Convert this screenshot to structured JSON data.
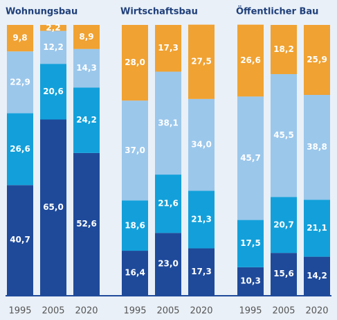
{
  "chart_data": [
    {
      "type": "bar",
      "stacked": true,
      "title": "Wohnungsbau",
      "categories": [
        "1995",
        "2005",
        "2020"
      ],
      "ylim": [
        0,
        100
      ],
      "series": [
        {
          "color": "#1f4a9a",
          "values": [
            40.7,
            65.0,
            52.6
          ],
          "value_labels": [
            "40,7",
            "65,0",
            "52,6"
          ]
        },
        {
          "color": "#13a0da",
          "values": [
            26.6,
            20.6,
            24.2
          ],
          "value_labels": [
            "26,6",
            "20,6",
            "24,2"
          ]
        },
        {
          "color": "#9bc7eb",
          "values": [
            22.9,
            12.2,
            14.3
          ],
          "value_labels": [
            "22,9",
            "12,2",
            "14,3"
          ]
        },
        {
          "color": "#f0a232",
          "values": [
            9.8,
            2.2,
            8.9
          ],
          "value_labels": [
            "9,8",
            "2,2",
            "8,9"
          ]
        }
      ]
    },
    {
      "type": "bar",
      "stacked": true,
      "title": "Wirtschaftsbau",
      "categories": [
        "1995",
        "2005",
        "2020"
      ],
      "ylim": [
        0,
        100
      ],
      "series": [
        {
          "color": "#1f4a9a",
          "values": [
            16.4,
            23.0,
            17.3
          ],
          "value_labels": [
            "16,4",
            "23,0",
            "17,3"
          ]
        },
        {
          "color": "#13a0da",
          "values": [
            18.6,
            21.6,
            21.3
          ],
          "value_labels": [
            "18,6",
            "21,6",
            "21,3"
          ]
        },
        {
          "color": "#9bc7eb",
          "values": [
            37.0,
            38.1,
            34.0
          ],
          "value_labels": [
            "37,0",
            "38,1",
            "34,0"
          ]
        },
        {
          "color": "#f0a232",
          "values": [
            28.0,
            17.3,
            27.5
          ],
          "value_labels": [
            "28,0",
            "17,3",
            "27,5"
          ]
        }
      ]
    },
    {
      "type": "bar",
      "stacked": true,
      "title": "Öffentlicher Bau",
      "categories": [
        "1995",
        "2005",
        "2020"
      ],
      "ylim": [
        0,
        100
      ],
      "series": [
        {
          "color": "#1f4a9a",
          "values": [
            10.3,
            15.6,
            14.2
          ],
          "value_labels": [
            "10,3",
            "15,6",
            "14,2"
          ]
        },
        {
          "color": "#13a0da",
          "values": [
            17.5,
            20.7,
            21.1
          ],
          "value_labels": [
            "17,5",
            "20,7",
            "21,1"
          ]
        },
        {
          "color": "#9bc7eb",
          "values": [
            45.7,
            45.5,
            38.8
          ],
          "value_labels": [
            "45,7",
            "45,5",
            "38,8"
          ]
        },
        {
          "color": "#f0a232",
          "values": [
            26.6,
            18.2,
            25.9
          ],
          "value_labels": [
            "26,6",
            "18,2",
            "25,9"
          ]
        }
      ]
    }
  ]
}
